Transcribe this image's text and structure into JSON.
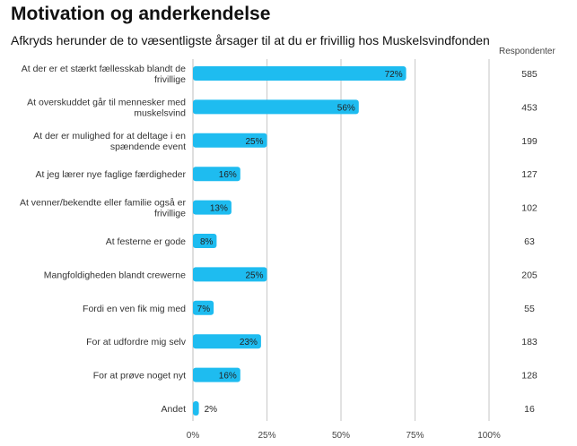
{
  "title": "Motivation og anderkendelse",
  "subtitle": "Afkryds herunder de to væsentligste årsager til at du er frivillig hos Muskelsvindfonden",
  "respondents_header": "Respondenter",
  "colors": {
    "bar": "#1ebcf0",
    "grid": "#cfcfcf",
    "axis": "#bdbdbd"
  },
  "chart_data": {
    "type": "bar",
    "orientation": "horizontal",
    "title": "Motivation og anderkendelse",
    "subtitle": "Afkryds herunder de to væsentligste årsager til at du er frivillig hos Muskelsvindfonden",
    "categories": [
      [
        "At der er et stærkt fællesskab blandt de",
        "frivillige"
      ],
      [
        "At overskuddet går til mennesker med",
        "muskelsvind"
      ],
      [
        "At der er mulighed for at deltage i en",
        "spændende event"
      ],
      [
        "At jeg lærer nye faglige færdigheder"
      ],
      [
        "At venner/bekendte eller familie også er",
        "frivillige"
      ],
      [
        "At festerne er gode"
      ],
      [
        "Mangfoldigheden blandt crewerne"
      ],
      [
        "Fordi en ven fik mig med"
      ],
      [
        "For at udfordre mig selv"
      ],
      [
        "For at prøve noget nyt"
      ],
      [
        "Andet"
      ]
    ],
    "values": [
      72,
      56,
      25,
      16,
      13,
      8,
      25,
      7,
      23,
      16,
      2
    ],
    "value_labels": [
      "72%",
      "56%",
      "25%",
      "16%",
      "13%",
      "8%",
      "25%",
      "7%",
      "23%",
      "16%",
      "2%"
    ],
    "respondents": [
      "585",
      "453",
      "199",
      "127",
      "102",
      "63",
      "205",
      "55",
      "183",
      "128",
      "16"
    ],
    "xlim": [
      0,
      100
    ],
    "xticks": [
      0,
      25,
      50,
      75,
      100
    ],
    "xtick_labels": [
      "0%",
      "25%",
      "50%",
      "75%",
      "100%"
    ],
    "grid": true,
    "legend": "none"
  }
}
